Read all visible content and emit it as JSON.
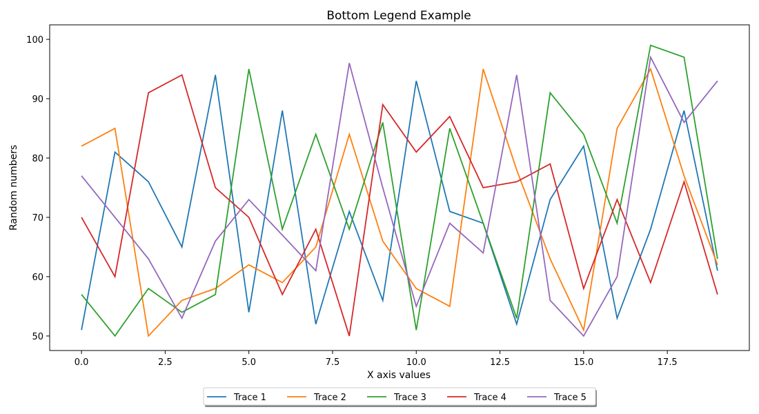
{
  "chart_data": {
    "type": "line",
    "title": "Bottom Legend Example",
    "xlabel": "X axis values",
    "ylabel": "Random numbers",
    "xlim": [
      -0.95,
      19.95
    ],
    "ylim": [
      47.55,
      102.45
    ],
    "xticks": [
      0.0,
      2.5,
      5.0,
      7.5,
      10.0,
      12.5,
      15.0,
      17.5
    ],
    "xtick_labels": [
      "0.0",
      "2.5",
      "5.0",
      "7.5",
      "10.0",
      "12.5",
      "15.0",
      "17.5"
    ],
    "yticks": [
      50,
      60,
      70,
      80,
      90,
      100
    ],
    "ytick_labels": [
      "50",
      "60",
      "70",
      "80",
      "90",
      "100"
    ],
    "grid": false,
    "legend_position": "bottom-center",
    "x": [
      0,
      1,
      2,
      3,
      4,
      5,
      6,
      7,
      8,
      9,
      10,
      11,
      12,
      13,
      14,
      15,
      16,
      17,
      18,
      19
    ],
    "series": [
      {
        "name": "Trace 1",
        "color": "#1f77b4",
        "values": [
          51,
          81,
          76,
          65,
          94,
          54,
          88,
          52,
          71,
          56,
          93,
          71,
          69,
          52,
          73,
          82,
          53,
          68,
          88,
          61
        ]
      },
      {
        "name": "Trace 2",
        "color": "#ff7f0e",
        "values": [
          82,
          85,
          50,
          56,
          58,
          62,
          59,
          65,
          84,
          66,
          58,
          55,
          95,
          78,
          63,
          51,
          85,
          95,
          77,
          62
        ]
      },
      {
        "name": "Trace 3",
        "color": "#2ca02c",
        "values": [
          57,
          50,
          58,
          54,
          57,
          95,
          68,
          84,
          68,
          86,
          51,
          85,
          69,
          53,
          91,
          84,
          69,
          99,
          97,
          63
        ]
      },
      {
        "name": "Trace 4",
        "color": "#d62728",
        "values": [
          70,
          60,
          91,
          94,
          75,
          70,
          57,
          68,
          50,
          89,
          81,
          87,
          75,
          76,
          79,
          58,
          73,
          59,
          76,
          57
        ]
      },
      {
        "name": "Trace 5",
        "color": "#9467bd",
        "values": [
          77,
          70,
          63,
          53,
          66,
          73,
          67,
          61,
          96,
          75,
          55,
          69,
          64,
          94,
          56,
          50,
          60,
          97,
          86,
          93
        ]
      }
    ]
  }
}
